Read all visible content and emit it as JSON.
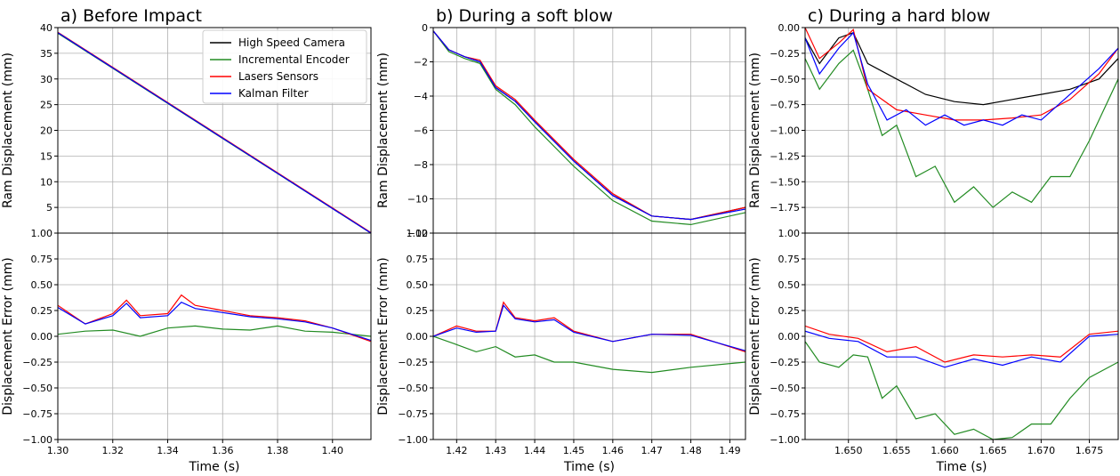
{
  "chart_data": [
    {
      "type": "line",
      "title": "a) Before Impact",
      "xlabel": "Time (s)",
      "xlim": [
        1.3,
        1.414
      ],
      "xticks": [
        "1.30",
        "1.32",
        "1.34",
        "1.36",
        "1.38",
        "1.40"
      ],
      "grid": true,
      "legend": {
        "placement": "top-right",
        "entries": [
          "High Speed Camera",
          "Incremental Encoder",
          "Lasers Sensors",
          "Kalman Filter"
        ]
      },
      "top": {
        "ylabel": "Ram Displacement (mm)",
        "ylim": [
          0,
          40
        ],
        "yticks": [
          "40",
          "35",
          "30",
          "25",
          "20",
          "15",
          "10",
          "5",
          "1.00"
        ],
        "series": [
          {
            "name": "High Speed Camera",
            "color": "#000000",
            "x": [
              1.3,
              1.414
            ],
            "y": [
              39,
              0
            ]
          },
          {
            "name": "Incremental Encoder",
            "color": "#228b22",
            "x": [
              1.3,
              1.414
            ],
            "y": [
              38.9,
              0
            ]
          },
          {
            "name": "Lasers Sensors",
            "color": "#ff0000",
            "x": [
              1.3,
              1.414
            ],
            "y": [
              39.1,
              0.1
            ]
          },
          {
            "name": "Kalman Filter",
            "color": "#0000ff",
            "x": [
              1.3,
              1.414
            ],
            "y": [
              39,
              0
            ]
          }
        ]
      },
      "bottom": {
        "ylabel": "Displacement Error (mm)",
        "ylim": [
          -1.0,
          1.0
        ],
        "yticks": [
          "0.75",
          "0.50",
          "0.25",
          "0.00",
          "−0.25",
          "−0.50",
          "−0.75",
          "−1.00"
        ],
        "series": [
          {
            "name": "Incremental Encoder",
            "color": "#228b22",
            "x": [
              1.3,
              1.31,
              1.32,
              1.33,
              1.34,
              1.35,
              1.36,
              1.37,
              1.38,
              1.39,
              1.4,
              1.414
            ],
            "y": [
              0.02,
              0.05,
              0.06,
              0.0,
              0.08,
              0.1,
              0.07,
              0.06,
              0.1,
              0.05,
              0.04,
              0.0
            ]
          },
          {
            "name": "Lasers Sensors",
            "color": "#ff0000",
            "x": [
              1.3,
              1.31,
              1.32,
              1.325,
              1.33,
              1.34,
              1.345,
              1.35,
              1.36,
              1.37,
              1.38,
              1.39,
              1.4,
              1.414
            ],
            "y": [
              0.3,
              0.12,
              0.22,
              0.35,
              0.2,
              0.22,
              0.4,
              0.3,
              0.25,
              0.2,
              0.18,
              0.15,
              0.08,
              -0.05
            ]
          },
          {
            "name": "Kalman Filter",
            "color": "#0000ff",
            "x": [
              1.3,
              1.31,
              1.32,
              1.325,
              1.33,
              1.34,
              1.345,
              1.35,
              1.36,
              1.37,
              1.38,
              1.39,
              1.4,
              1.414
            ],
            "y": [
              0.28,
              0.12,
              0.2,
              0.32,
              0.18,
              0.2,
              0.33,
              0.27,
              0.23,
              0.19,
              0.17,
              0.14,
              0.08,
              -0.04
            ]
          }
        ]
      }
    },
    {
      "type": "line",
      "title": "b) During a soft blow",
      "xlabel": "Time (s)",
      "xlim": [
        1.414,
        1.494
      ],
      "xticks": [
        "1.42",
        "1.43",
        "1.44",
        "1.45",
        "1.46",
        "1.47",
        "1.48",
        "1.49"
      ],
      "grid": true,
      "top": {
        "ylabel": "Ram Displacement (mm)",
        "ylim": [
          -12,
          0
        ],
        "yticks": [
          "0",
          "−2",
          "−4",
          "−6",
          "−8",
          "−10",
          "−12"
        ],
        "top_axis_overlap_label": "1.00",
        "series": [
          {
            "name": "High Speed Camera",
            "color": "#000000",
            "x": [
              1.414,
              1.418,
              1.422,
              1.426,
              1.43,
              1.435,
              1.44,
              1.45,
              1.46,
              1.47,
              1.48,
              1.494
            ],
            "y": [
              -0.2,
              -1.3,
              -1.7,
              -2.0,
              -3.5,
              -4.3,
              -5.5,
              -7.8,
              -9.8,
              -11.0,
              -11.2,
              -10.5
            ]
          },
          {
            "name": "Incremental Encoder",
            "color": "#228b22",
            "x": [
              1.414,
              1.418,
              1.422,
              1.426,
              1.43,
              1.435,
              1.44,
              1.45,
              1.46,
              1.47,
              1.48,
              1.494
            ],
            "y": [
              -0.2,
              -1.4,
              -1.8,
              -2.1,
              -3.6,
              -4.5,
              -5.8,
              -8.1,
              -10.1,
              -11.3,
              -11.5,
              -10.8
            ]
          },
          {
            "name": "Lasers Sensors",
            "color": "#ff0000",
            "x": [
              1.414,
              1.418,
              1.422,
              1.426,
              1.43,
              1.435,
              1.44,
              1.45,
              1.46,
              1.47,
              1.48,
              1.494
            ],
            "y": [
              -0.2,
              -1.3,
              -1.7,
              -1.9,
              -3.4,
              -4.2,
              -5.4,
              -7.7,
              -9.7,
              -11.0,
              -11.2,
              -10.5
            ]
          },
          {
            "name": "Kalman Filter",
            "color": "#0000ff",
            "x": [
              1.414,
              1.418,
              1.422,
              1.426,
              1.43,
              1.435,
              1.44,
              1.45,
              1.46,
              1.47,
              1.48,
              1.494
            ],
            "y": [
              -0.2,
              -1.3,
              -1.7,
              -2.0,
              -3.5,
              -4.3,
              -5.5,
              -7.8,
              -9.8,
              -11.0,
              -11.2,
              -10.6
            ]
          }
        ]
      },
      "bottom": {
        "ylabel": "Displacement Error (mm)",
        "ylim": [
          -1.0,
          1.0
        ],
        "yticks": [
          "0.75",
          "0.50",
          "0.25",
          "0.00",
          "−0.25",
          "−0.50",
          "−0.75",
          "−1.00"
        ],
        "series": [
          {
            "name": "Incremental Encoder",
            "color": "#228b22",
            "x": [
              1.414,
              1.42,
              1.425,
              1.43,
              1.435,
              1.44,
              1.445,
              1.45,
              1.46,
              1.47,
              1.48,
              1.494
            ],
            "y": [
              0.0,
              -0.08,
              -0.15,
              -0.1,
              -0.2,
              -0.18,
              -0.25,
              -0.25,
              -0.32,
              -0.35,
              -0.3,
              -0.25
            ]
          },
          {
            "name": "Lasers Sensors",
            "color": "#ff0000",
            "x": [
              1.414,
              1.42,
              1.425,
              1.43,
              1.432,
              1.435,
              1.44,
              1.445,
              1.45,
              1.46,
              1.47,
              1.48,
              1.494
            ],
            "y": [
              0.0,
              0.1,
              0.05,
              0.05,
              0.33,
              0.18,
              0.15,
              0.18,
              0.05,
              -0.05,
              0.02,
              0.02,
              -0.15
            ]
          },
          {
            "name": "Kalman Filter",
            "color": "#0000ff",
            "x": [
              1.414,
              1.42,
              1.425,
              1.43,
              1.432,
              1.435,
              1.44,
              1.445,
              1.45,
              1.46,
              1.47,
              1.48,
              1.494
            ],
            "y": [
              0.0,
              0.08,
              0.04,
              0.05,
              0.3,
              0.17,
              0.14,
              0.16,
              0.04,
              -0.05,
              0.02,
              0.01,
              -0.14
            ]
          }
        ]
      }
    },
    {
      "type": "line",
      "title": "c) During a hard blow",
      "xlabel": "Time (s)",
      "xlim": [
        1.6455,
        1.678
      ],
      "xticks": [
        "1.650",
        "1.655",
        "1.660",
        "1.665",
        "1.670",
        "1.675"
      ],
      "grid": true,
      "top": {
        "ylabel": "Ram Displacement (mm)",
        "ylim": [
          -2.0,
          0.0
        ],
        "yticks": [
          "0.00",
          "−0.25",
          "−0.50",
          "−0.75",
          "−1.00",
          "−1.25",
          "−1.50",
          "−1.75",
          "1.00"
        ],
        "series": [
          {
            "name": "High Speed Camera",
            "color": "#000000",
            "x": [
              1.6455,
              1.647,
              1.649,
              1.6505,
              1.652,
              1.655,
              1.658,
              1.661,
              1.664,
              1.667,
              1.67,
              1.673,
              1.676,
              1.678
            ],
            "y": [
              -0.1,
              -0.35,
              -0.1,
              -0.05,
              -0.35,
              -0.5,
              -0.65,
              -0.72,
              -0.75,
              -0.7,
              -0.65,
              -0.6,
              -0.5,
              -0.3
            ]
          },
          {
            "name": "Incremental Encoder",
            "color": "#228b22",
            "x": [
              1.6455,
              1.647,
              1.649,
              1.6505,
              1.652,
              1.6535,
              1.655,
              1.657,
              1.659,
              1.661,
              1.663,
              1.665,
              1.667,
              1.669,
              1.671,
              1.673,
              1.675,
              1.678
            ],
            "y": [
              -0.3,
              -0.6,
              -0.35,
              -0.22,
              -0.6,
              -1.05,
              -0.95,
              -1.45,
              -1.35,
              -1.7,
              -1.55,
              -1.75,
              -1.6,
              -1.7,
              -1.45,
              -1.45,
              -1.1,
              -0.5
            ]
          },
          {
            "name": "Lasers Sensors",
            "color": "#ff0000",
            "x": [
              1.6455,
              1.647,
              1.649,
              1.6505,
              1.652,
              1.655,
              1.658,
              1.661,
              1.664,
              1.667,
              1.67,
              1.673,
              1.676,
              1.678
            ],
            "y": [
              0.0,
              -0.3,
              -0.15,
              -0.02,
              -0.6,
              -0.8,
              -0.85,
              -0.9,
              -0.9,
              -0.88,
              -0.85,
              -0.7,
              -0.45,
              -0.2
            ]
          },
          {
            "name": "Kalman Filter",
            "color": "#0000ff",
            "x": [
              1.6455,
              1.647,
              1.649,
              1.6505,
              1.652,
              1.654,
              1.656,
              1.658,
              1.66,
              1.662,
              1.664,
              1.666,
              1.668,
              1.67,
              1.673,
              1.676,
              1.678
            ],
            "y": [
              -0.1,
              -0.45,
              -0.2,
              -0.05,
              -0.55,
              -0.9,
              -0.8,
              -0.95,
              -0.85,
              -0.95,
              -0.9,
              -0.95,
              -0.85,
              -0.9,
              -0.65,
              -0.4,
              -0.2
            ]
          }
        ]
      },
      "bottom": {
        "ylabel": "Displacement Error (mm)",
        "ylim": [
          -1.0,
          1.0
        ],
        "yticks": [
          "0.75",
          "0.50",
          "0.25",
          "0.00",
          "−0.25",
          "−0.50",
          "−0.75",
          "−1.00"
        ],
        "series": [
          {
            "name": "Incremental Encoder",
            "color": "#228b22",
            "x": [
              1.6455,
              1.647,
              1.649,
              1.6505,
              1.652,
              1.6535,
              1.655,
              1.657,
              1.659,
              1.661,
              1.663,
              1.665,
              1.667,
              1.669,
              1.671,
              1.673,
              1.675,
              1.678
            ],
            "y": [
              -0.05,
              -0.25,
              -0.3,
              -0.18,
              -0.2,
              -0.6,
              -0.48,
              -0.8,
              -0.75,
              -0.95,
              -0.9,
              -1.0,
              -0.98,
              -0.85,
              -0.85,
              -0.6,
              -0.4,
              -0.25
            ]
          },
          {
            "name": "Lasers Sensors",
            "color": "#ff0000",
            "x": [
              1.6455,
              1.648,
              1.651,
              1.654,
              1.657,
              1.66,
              1.663,
              1.666,
              1.669,
              1.672,
              1.675,
              1.678
            ],
            "y": [
              0.1,
              0.02,
              -0.02,
              -0.15,
              -0.1,
              -0.25,
              -0.18,
              -0.2,
              -0.18,
              -0.2,
              0.02,
              0.05
            ]
          },
          {
            "name": "Kalman Filter",
            "color": "#0000ff",
            "x": [
              1.6455,
              1.648,
              1.651,
              1.654,
              1.657,
              1.66,
              1.663,
              1.666,
              1.669,
              1.672,
              1.675,
              1.678
            ],
            "y": [
              0.05,
              -0.02,
              -0.05,
              -0.2,
              -0.2,
              -0.3,
              -0.22,
              -0.28,
              -0.2,
              -0.25,
              0.0,
              0.02
            ]
          }
        ]
      }
    }
  ]
}
